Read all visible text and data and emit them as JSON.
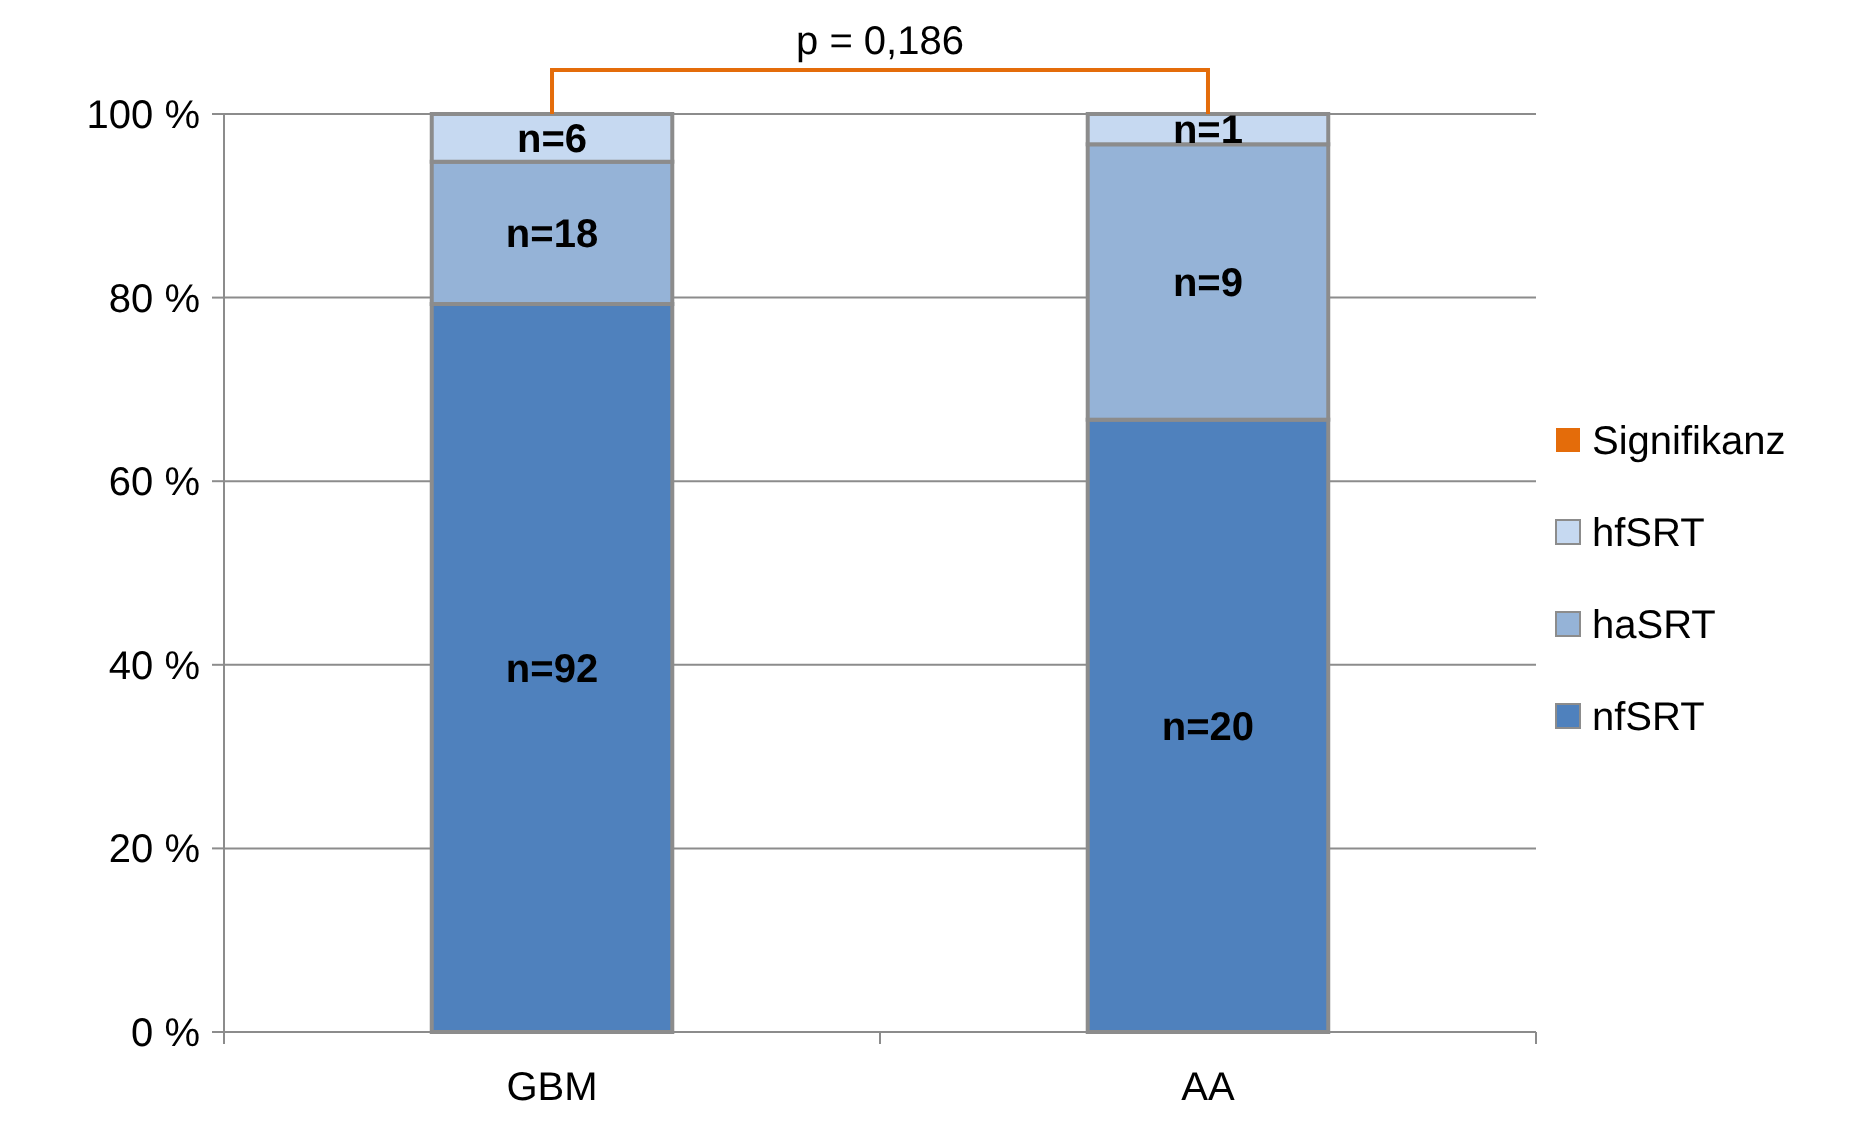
{
  "chart_data": {
    "type": "bar",
    "stacked": true,
    "categories": [
      "GBM",
      "AA"
    ],
    "ylim": [
      0,
      100
    ],
    "yticks": [
      {
        "value": 0,
        "label": "0 %"
      },
      {
        "value": 20,
        "label": "20 %"
      },
      {
        "value": 40,
        "label": "40 %"
      },
      {
        "value": 60,
        "label": "60 %"
      },
      {
        "value": 80,
        "label": "80 %"
      },
      {
        "value": 100,
        "label": "100 %"
      }
    ],
    "grid": "y",
    "legend": "right",
    "series": [
      {
        "name": "nfSRT",
        "color": "#4f81bd",
        "values": [
          79.3,
          66.7
        ]
      },
      {
        "name": "haSRT",
        "color": "#95b3d7",
        "values": [
          15.5,
          30.0
        ]
      },
      {
        "name": "hfSRT",
        "color": "#c6d9f1",
        "values": [
          5.2,
          3.3
        ]
      },
      {
        "name": "Signifikanz",
        "type": "line",
        "color": "#e46c0a",
        "values": [
          null,
          null
        ]
      }
    ],
    "annotations": [
      "p = 0,186",
      "n=92",
      "n=20",
      "n=18",
      "n=9",
      "n=6",
      "n=1"
    ]
  }
}
